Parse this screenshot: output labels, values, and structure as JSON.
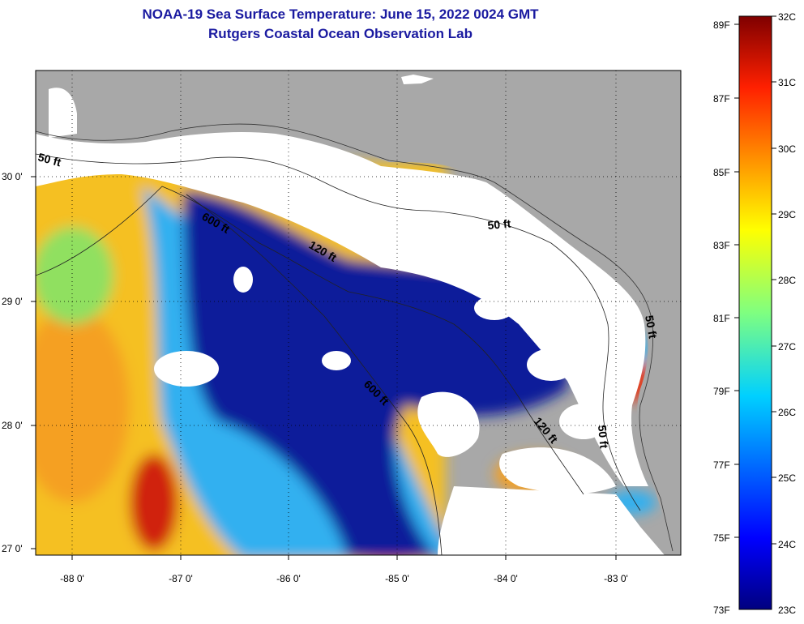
{
  "title": {
    "line1": "NOAA-19 Sea Surface Temperature:  June 15, 2022 0024 GMT",
    "line2": "Rutgers Coastal Ocean Observation Lab"
  },
  "map": {
    "lat_labels": [
      "30 0'",
      "29 0'",
      "28 0'",
      "27 0'"
    ],
    "lon_labels": [
      "-88 0'",
      "-87 0'",
      "-86 0'",
      "-85 0'",
      "-84 0'",
      "-83 0'"
    ],
    "contour_labels": [
      "50 ft",
      "600 ft",
      "120 ft",
      "50 ft",
      "600 ft",
      "120 ft",
      "50 ft",
      "50 ft"
    ],
    "colors": {
      "land": "#a8a8a8",
      "cloud": "#ffffff",
      "cold": "#0a1a9a",
      "warm": "#e02010"
    }
  },
  "colorbar": {
    "fahrenheit": [
      "89F",
      "87F",
      "85F",
      "83F",
      "81F",
      "79F",
      "77F",
      "75F",
      "73F"
    ],
    "celsius": [
      "32C",
      "31C",
      "30C",
      "29C",
      "28C",
      "27C",
      "26C",
      "25C",
      "24C",
      "23C"
    ]
  }
}
